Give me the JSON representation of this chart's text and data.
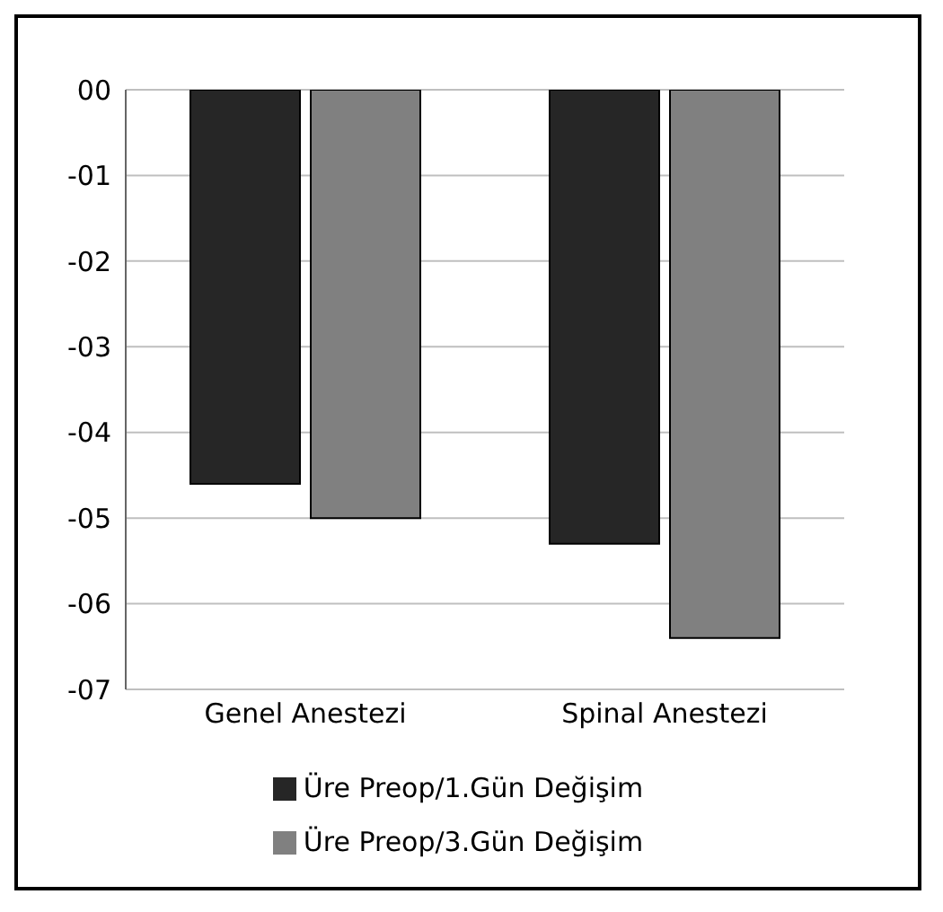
{
  "chart_data": {
    "type": "bar",
    "categories": [
      "Genel Anestezi",
      "Spinal Anestezi"
    ],
    "series": [
      {
        "name": "Üre Preop/1.Gün Değişim",
        "color": "#262626",
        "values": [
          -4.6,
          -5.3
        ]
      },
      {
        "name": "Üre Preop/3.Gün Değişim",
        "color": "#808080",
        "values": [
          -5.0,
          -6.4
        ]
      }
    ],
    "ylim": [
      -7,
      0
    ],
    "yticks": [
      {
        "value": 0,
        "label": "00"
      },
      {
        "value": -1,
        "label": "-01"
      },
      {
        "value": -2,
        "label": "-02"
      },
      {
        "value": -3,
        "label": "-03"
      },
      {
        "value": -4,
        "label": "-04"
      },
      {
        "value": -5,
        "label": "-05"
      },
      {
        "value": -6,
        "label": "-06"
      },
      {
        "value": -7,
        "label": "-07"
      }
    ],
    "grid": "y",
    "legend": "bottom"
  }
}
